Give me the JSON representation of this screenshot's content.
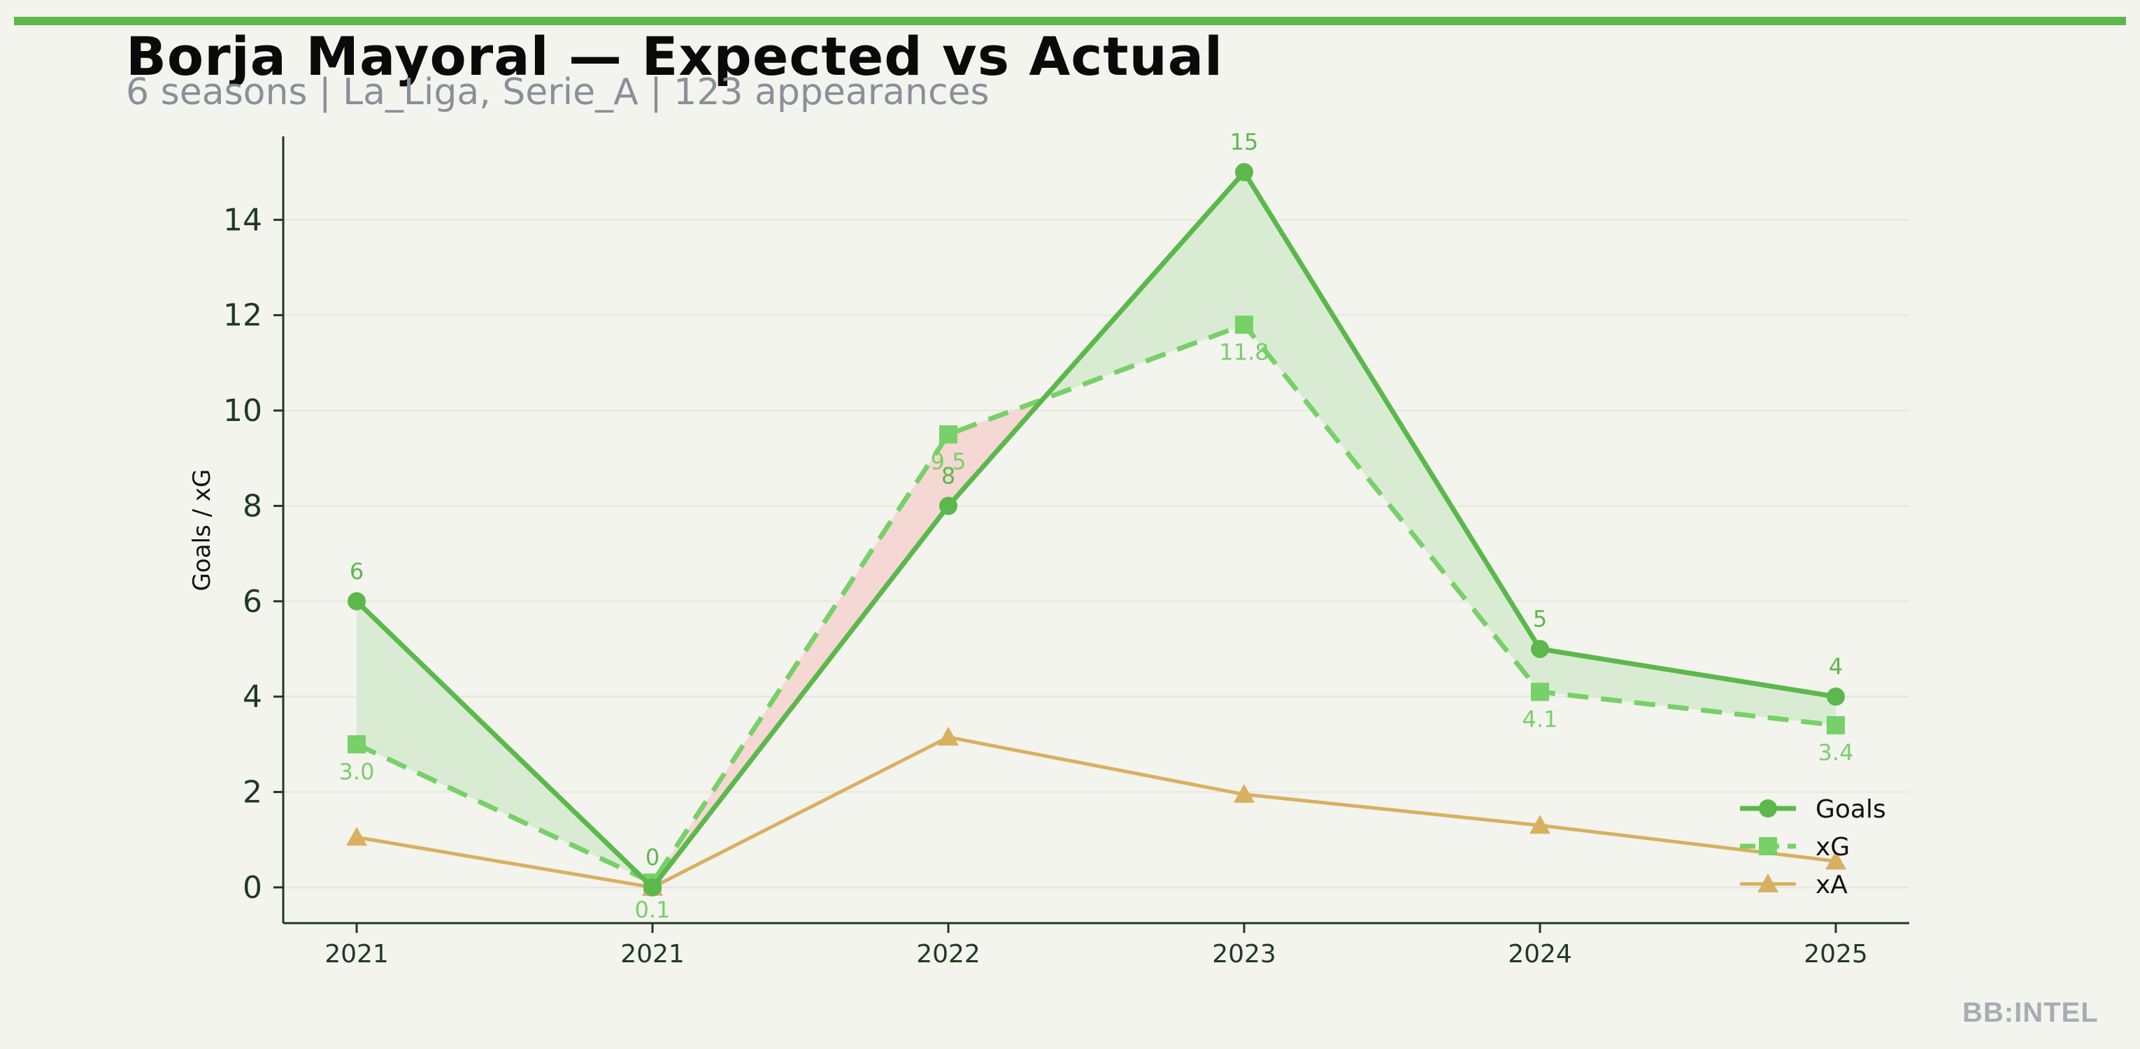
{
  "header": {
    "title": "Borja Mayoral — Expected vs Actual",
    "subtitle": "6 seasons | La_Liga, Serie_A | 123 appearances"
  },
  "brand": "BB:INTEL",
  "colors": {
    "accent": "#5cb84c",
    "goals": "#5cb84c",
    "xg": "#78d068",
    "xa": "#d8b060",
    "over_fill": "#d9ecd3",
    "under_fill": "#f5d8d3",
    "axis": "#1e3a22"
  },
  "chart_data": {
    "type": "line",
    "categories": [
      "2021",
      "2021",
      "2022",
      "2023",
      "2024",
      "2025"
    ],
    "series": [
      {
        "name": "Goals",
        "values": [
          6,
          0,
          8,
          15,
          5,
          4
        ],
        "labels": [
          "6",
          "0",
          "8",
          "15",
          "5",
          "4"
        ],
        "marker": "circle",
        "style": "solid"
      },
      {
        "name": "xG",
        "values": [
          3.0,
          0.1,
          9.5,
          11.8,
          4.1,
          3.4
        ],
        "labels": [
          "3.0",
          "0.1",
          "9.5",
          "11.8",
          "4.1",
          "3.4"
        ],
        "marker": "square",
        "style": "dashed"
      },
      {
        "name": "xA",
        "values": [
          1.05,
          0.0,
          3.15,
          1.95,
          1.3,
          0.55
        ],
        "marker": "triangle",
        "style": "solid"
      }
    ],
    "ylabel": "Goals / xG",
    "xlabel": "",
    "ylim": [
      -0.75,
      15.75
    ],
    "yticks": [
      0,
      2,
      4,
      6,
      8,
      10,
      12,
      14
    ],
    "grid": true,
    "legend": "bottom-right"
  }
}
